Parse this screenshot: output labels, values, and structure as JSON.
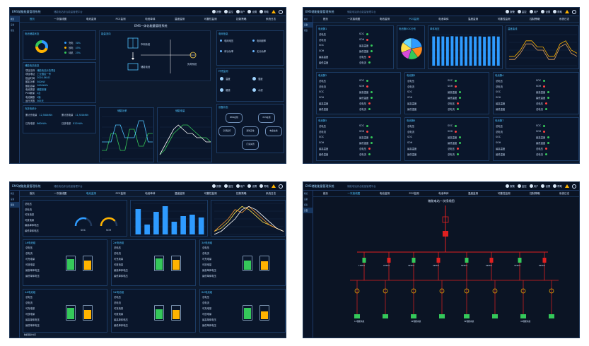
{
  "app": {
    "brand": "EMS储能能量管理系统",
    "subtitle": "储能电站综合能量管理平台",
    "tools": [
      {
        "icon": "wrench-icon",
        "label": "报警"
      },
      {
        "icon": "monitor-icon",
        "label": "监控"
      },
      {
        "icon": "user-icon",
        "label": "用户"
      },
      {
        "icon": "settings-icon",
        "label": "设置"
      },
      {
        "icon": "help-icon",
        "label": "帮助"
      }
    ]
  },
  "nav": [
    "首页",
    "一次接线图",
    "电池监测",
    "PCS监测",
    "电池单体",
    "温度监测",
    "可靠性监测",
    "控制策略",
    "系统日志"
  ],
  "sidebar": [
    "概览",
    "设备",
    "报表",
    "告警"
  ],
  "p1": {
    "center_title": "EMS一体化能量管理系统",
    "soc_title": "电池储能状态",
    "soc_legend": [
      {
        "label": "充电",
        "value": "30%",
        "color": "#2e9bff"
      },
      {
        "label": "放电",
        "value": "45%",
        "color": "#ffb300"
      },
      {
        "label": "待机",
        "value": "25%",
        "color": "#35c85a"
      }
    ],
    "info_title": "储能电站信息",
    "info": [
      {
        "label": "项目名称",
        "value": "储能电站示范项目"
      },
      {
        "label": "项目地址",
        "value": "工业园区一号"
      },
      {
        "label": "投运时间",
        "value": "2020-06-01"
      },
      {
        "label": "额定功率",
        "value": "500kW"
      },
      {
        "label": "额定容量",
        "value": "1000kWh"
      },
      {
        "label": "电池类型",
        "value": "磷酸铁锂"
      },
      {
        "label": "PCS数量",
        "value": "2台"
      },
      {
        "label": "电池簇数",
        "value": "4簇"
      },
      {
        "label": "运行天数",
        "value": "365天"
      }
    ],
    "stats_title": "充放电统计",
    "stats": [
      {
        "label": "累计充电量",
        "value": "12,580kWh"
      },
      {
        "label": "累计放电量",
        "value": "11,920kWh"
      },
      {
        "label": "日充电量",
        "value": "860kWh"
      },
      {
        "label": "日放电量",
        "value": "812kWh"
      }
    ],
    "flow_title": "能量流向",
    "flow_grid": "市网系统",
    "flow_bat": "储能电池",
    "flow_load": "负荷系统",
    "chart1_title": "储能功率",
    "chart2_title": "储能电量",
    "right_title": "电网信息",
    "right_items": [
      "电网电压",
      "电网频率",
      "有功功率",
      "无功功率"
    ],
    "env_title": "环境监测",
    "env_items": [
      "温度",
      "湿度",
      "烟感",
      "水浸"
    ],
    "dev_title": "设备状态",
    "dev_items": [
      "BMS在线",
      "PCS在线",
      "空调运行",
      "消防正常",
      "电表在线",
      "门禁关闭"
    ]
  },
  "p2": {
    "boxes": [
      "电池簇1",
      "电池簇2",
      "电池簇3",
      "电池簇4",
      "电池簇5",
      "电池簇6",
      "电池簇7",
      "电池簇8"
    ],
    "row_labels": [
      "总电压",
      "总电流",
      "SOC",
      "SOH",
      "最高温度",
      "最低温度"
    ],
    "pie_title": "电池簇SOC分布",
    "bar_title": "单体电压",
    "line_title": "温度曲线"
  },
  "p3": {
    "gauge_labels": [
      "SOC",
      "SOH"
    ],
    "bat_boxes": [
      "1#电池组",
      "2#电池组",
      "3#电池组",
      "4#电池组",
      "5#电池组",
      "6#电池组"
    ],
    "row_labels": [
      "总电压",
      "总电流",
      "可充电量",
      "可放电量",
      "最高单体电压",
      "最低单体电压"
    ],
    "footer": "数据更新时间"
  },
  "p4": {
    "title": "储能电站一次接线图",
    "feeder_labels": [
      "1#PCS",
      "2#PCS",
      "3#PCS",
      "4#PCS",
      "5#PCS",
      "6#PCS",
      "7#PCS",
      "8#PCS"
    ],
    "bottom_labels": [
      "1#储能系统",
      "2#储能系统",
      "3#储能系统",
      "4#储能系统"
    ]
  },
  "chart_data": [
    {
      "type": "bar",
      "title": "单体电压",
      "categories": [
        "1",
        "2",
        "3",
        "4",
        "5",
        "6",
        "7",
        "8",
        "9",
        "10",
        "11",
        "12",
        "13",
        "14",
        "15"
      ],
      "values": [
        3.3,
        3.28,
        3.3,
        3.25,
        3.32,
        3.29,
        3.3,
        3.27,
        3.31,
        3.28,
        3.3,
        3.26,
        3.29,
        3.31,
        3.28
      ],
      "ylim": [
        0,
        3.5
      ]
    },
    {
      "type": "bar",
      "categories": [
        "1",
        "2",
        "3",
        "4",
        "5",
        "6",
        "7",
        "8"
      ],
      "values": [
        18,
        7,
        16,
        20,
        9,
        13,
        14,
        12
      ],
      "ylim": [
        0,
        22
      ]
    },
    {
      "type": "pie",
      "title": "电池簇SOC分布",
      "values": [
        22,
        18,
        15,
        14,
        16,
        15
      ],
      "colors": [
        "#2e9bff",
        "#ff8a1c",
        "#35c85a",
        "#d94bd9",
        "#ffe14a",
        "#6ad8ff"
      ]
    },
    {
      "type": "line",
      "title": "储能功率",
      "x": [
        0,
        1,
        2,
        3,
        4,
        5,
        6,
        7,
        8,
        9,
        10,
        11
      ],
      "series": [
        {
          "values": [
            2,
            2,
            6,
            6,
            2,
            2,
            7,
            7,
            3,
            3,
            6,
            6
          ],
          "color": "#35c85a"
        },
        {
          "values": [
            4,
            4,
            4,
            8,
            8,
            5,
            5,
            5,
            9,
            9,
            4,
            4
          ],
          "color": "#4fc3ff"
        }
      ],
      "ylim": [
        0,
        10
      ]
    },
    {
      "type": "line",
      "title": "储能电量",
      "x": [
        0,
        1,
        2,
        3,
        4,
        5,
        6,
        7,
        8,
        9,
        10,
        11
      ],
      "series": [
        {
          "values": [
            1,
            2,
            4,
            6,
            7,
            8,
            8,
            7,
            6,
            5,
            5,
            4
          ],
          "color": "#35c85a"
        },
        {
          "values": [
            1,
            3,
            5,
            7,
            8,
            7,
            6,
            6,
            5,
            5,
            4,
            4
          ],
          "color": "#ffffff"
        }
      ],
      "ylim": [
        0,
        10
      ]
    },
    {
      "type": "line",
      "title": "温度曲线",
      "x": [
        0,
        1,
        2,
        3,
        4,
        5,
        6,
        7,
        8,
        9,
        10,
        11,
        12
      ],
      "series": [
        {
          "values": [
            3,
            3,
            5,
            8,
            8,
            6,
            6,
            3,
            3,
            7,
            8,
            5,
            4
          ],
          "color": "#ffb300"
        },
        {
          "values": [
            2,
            2,
            4,
            7,
            7,
            5,
            5,
            2,
            2,
            6,
            7,
            4,
            3
          ],
          "color": "#e0a060"
        }
      ],
      "ylim": [
        0,
        10
      ]
    },
    {
      "type": "line",
      "x": [
        0,
        1,
        2,
        3,
        4,
        5,
        6,
        7,
        8,
        9,
        10
      ],
      "series": [
        {
          "values": [
            1,
            2,
            4,
            7,
            9,
            8,
            6,
            4,
            3,
            2,
            1
          ],
          "color": "#ffe14a"
        },
        {
          "values": [
            1,
            3,
            5,
            8,
            7,
            9,
            7,
            5,
            3,
            2,
            1
          ],
          "color": "#ff9a2e"
        },
        {
          "values": [
            0,
            1,
            3,
            5,
            8,
            9,
            8,
            6,
            4,
            2,
            1
          ],
          "color": "#ffffff"
        }
      ],
      "ylim": [
        0,
        10
      ]
    }
  ],
  "gauges": [
    {
      "value": 0.62,
      "color": "#2e9bff"
    },
    {
      "value": 0.78,
      "color": "#ffb300"
    }
  ],
  "battery_levels": [
    0.85,
    0.7,
    0.9,
    0.8,
    0.75,
    0.65,
    0.88,
    0.72,
    0.8,
    0.7,
    0.9,
    0.6
  ]
}
